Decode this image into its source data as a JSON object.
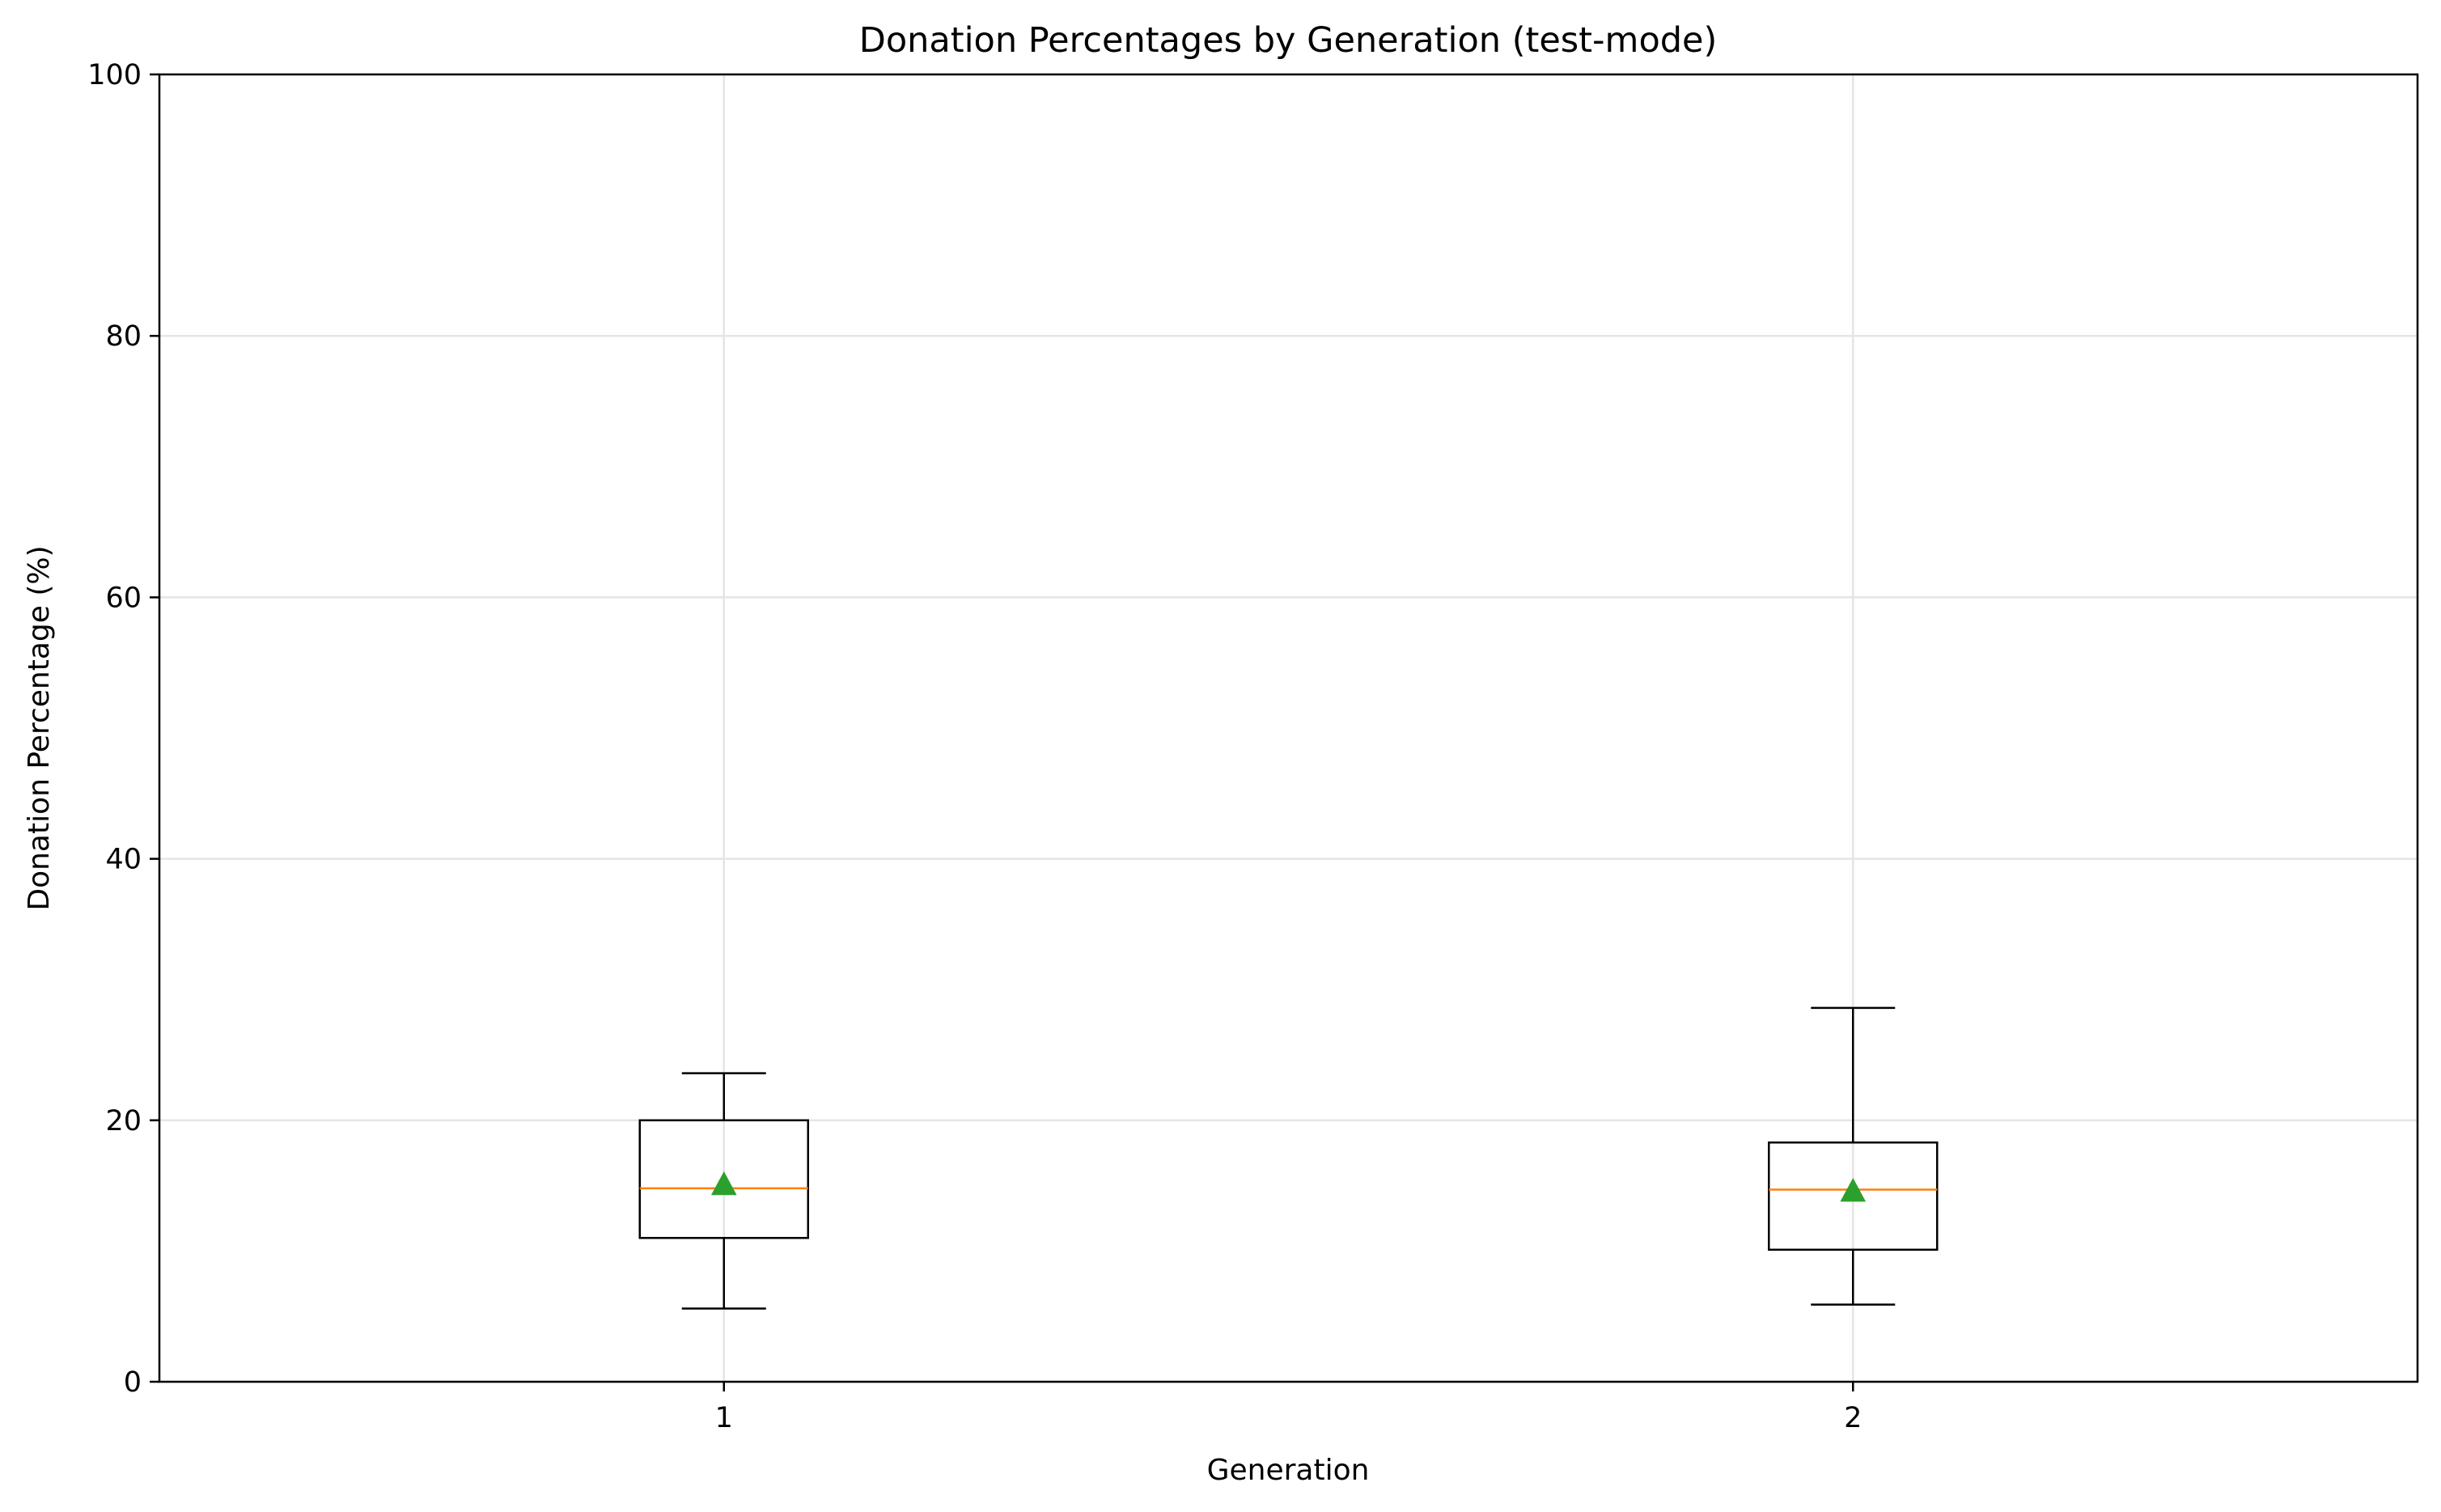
{
  "chart_data": {
    "type": "boxplot",
    "title": "Donation Percentages by Generation (test-mode)",
    "xlabel": "Generation",
    "ylabel": "Donation Percentage (%)",
    "categories": [
      "1",
      "2"
    ],
    "ylim": [
      0,
      100
    ],
    "yticks": [
      0,
      20,
      40,
      60,
      80,
      100
    ],
    "grid": true,
    "boxes": [
      {
        "category": "1",
        "whisker_low": 5.6,
        "q1": 11.0,
        "median": 14.8,
        "mean": 15.1,
        "q3": 20.0,
        "whisker_high": 23.6
      },
      {
        "category": "2",
        "whisker_low": 5.9,
        "q1": 10.1,
        "median": 14.7,
        "mean": 14.6,
        "q3": 18.3,
        "whisker_high": 28.6
      }
    ],
    "colors": {
      "median": "#ff7f0e",
      "mean": "#2ca02c",
      "box": "#000000",
      "grid": "#e5e5e5"
    }
  }
}
